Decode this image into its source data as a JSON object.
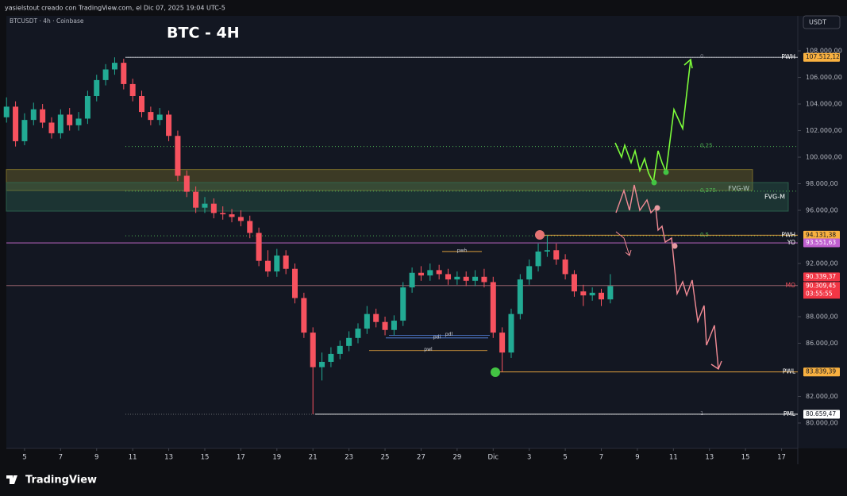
{
  "header": {
    "attribution": "yasielstout creado con TradingView.com, el Dic 07, 2025 19:04 UTC-5",
    "symbol": "BTCUSDT · 4h · Coinbase",
    "currency": "USDT",
    "brand": "TradingView"
  },
  "chart_data": {
    "type": "candlestick",
    "title": "BTC - 4H",
    "x": [
      -1,
      -0.5,
      0,
      0.5,
      1,
      1.5,
      2,
      2.5,
      3,
      3.5,
      4,
      4.5,
      5,
      5.5,
      6,
      6.5,
      7,
      7.5,
      8,
      8.5,
      9,
      9.5,
      10,
      10.5,
      11,
      11.5,
      12,
      12.5,
      13,
      13.5,
      14,
      14.5,
      15,
      15.5,
      16,
      16.5,
      17,
      17.5,
      18,
      18.5,
      19,
      19.5,
      20,
      20.5,
      21,
      21.5,
      22,
      22.5,
      23,
      23.5,
      24,
      24.5,
      25,
      25.5,
      26,
      26.5,
      27,
      27.5,
      28,
      28.5,
      29,
      29.5,
      30,
      30.5,
      31,
      31.5,
      32,
      32.5
    ],
    "open": [
      103000,
      103800,
      101200,
      102800,
      103600,
      102600,
      101800,
      103200,
      102400,
      102900,
      104600,
      105800,
      106600,
      107100,
      105500,
      104600,
      103400,
      102800,
      103200,
      101600,
      98600,
      97400,
      96200,
      96500,
      95800,
      95700,
      95500,
      95200,
      94300,
      92200,
      91400,
      92600,
      91600,
      89400,
      86800,
      84200,
      84600,
      85200,
      85800,
      86400,
      87100,
      88200,
      87600,
      87000,
      87700,
      90200,
      91300,
      91100,
      91500,
      91200,
      90800,
      91000,
      90700,
      91000,
      90600,
      86800,
      85300,
      88200,
      90800,
      91800,
      92900,
      93000,
      92300,
      91200,
      89900,
      89600,
      89800,
      89300
    ],
    "high": [
      104500,
      104200,
      103300,
      104100,
      104000,
      103000,
      103600,
      103700,
      103400,
      105000,
      106200,
      107000,
      107512,
      107400,
      105900,
      105000,
      103800,
      103700,
      103500,
      102000,
      99000,
      97800,
      97000,
      96900,
      96300,
      96100,
      96000,
      95600,
      94700,
      93000,
      93100,
      93000,
      92000,
      89800,
      87200,
      85300,
      85700,
      86200,
      86900,
      87500,
      88800,
      88600,
      88000,
      88100,
      90600,
      91700,
      91800,
      92000,
      91900,
      91600,
      91400,
      91400,
      91500,
      91600,
      91000,
      87200,
      88600,
      91200,
      92300,
      93500,
      94131,
      93500,
      92700,
      91500,
      90400,
      90200,
      90100,
      91200
    ],
    "low": [
      102600,
      100800,
      100900,
      102400,
      102200,
      101400,
      101400,
      102000,
      102000,
      102500,
      104200,
      105400,
      106200,
      105100,
      104200,
      103000,
      102400,
      102400,
      101200,
      98200,
      97000,
      95800,
      95800,
      95400,
      95300,
      95100,
      94800,
      93900,
      91800,
      91000,
      91000,
      91200,
      89000,
      86400,
      80659,
      83200,
      84200,
      84800,
      85400,
      86000,
      86700,
      87200,
      86600,
      86600,
      87300,
      89800,
      90700,
      90700,
      90800,
      90400,
      90400,
      90300,
      90300,
      90200,
      86400,
      83839,
      84900,
      87800,
      90400,
      91400,
      92500,
      91900,
      90800,
      89500,
      88800,
      89200,
      88800,
      89000
    ],
    "close": [
      103800,
      101200,
      102800,
      103600,
      102600,
      101800,
      103200,
      102400,
      102900,
      104600,
      105800,
      106600,
      107100,
      105500,
      104600,
      103400,
      102800,
      103200,
      101600,
      98600,
      97400,
      96200,
      96500,
      95800,
      95700,
      95500,
      95200,
      94300,
      92200,
      91400,
      92600,
      91600,
      89400,
      86800,
      84200,
      84600,
      85200,
      85800,
      86400,
      87100,
      88200,
      87600,
      87000,
      87700,
      90200,
      91300,
      91100,
      91500,
      91200,
      90800,
      91000,
      90700,
      91000,
      90600,
      86800,
      85300,
      88200,
      90800,
      91800,
      92900,
      93000,
      92300,
      91200,
      89900,
      89600,
      89800,
      89300,
      90300
    ],
    "up_color": "#22ab94",
    "down_color": "#f7525f",
    "xlim": [
      -1.01,
      42.9
    ],
    "xticks": [
      {
        "value": 0,
        "label": "5"
      },
      {
        "value": 2,
        "label": "7"
      },
      {
        "value": 4,
        "label": "9"
      },
      {
        "value": 6,
        "label": "11"
      },
      {
        "value": 8,
        "label": "13"
      },
      {
        "value": 10,
        "label": "15"
      },
      {
        "value": 12,
        "label": "17"
      },
      {
        "value": 14,
        "label": "19"
      },
      {
        "value": 16,
        "label": "21"
      },
      {
        "value": 18,
        "label": "23"
      },
      {
        "value": 20,
        "label": "25"
      },
      {
        "value": 22,
        "label": "27"
      },
      {
        "value": 24,
        "label": "29"
      },
      {
        "value": 26,
        "label": "Dic"
      },
      {
        "value": 28,
        "label": "3"
      },
      {
        "value": 30,
        "label": "5"
      },
      {
        "value": 32,
        "label": "7"
      },
      {
        "value": 34,
        "label": "9"
      },
      {
        "value": 36,
        "label": "11"
      },
      {
        "value": 38,
        "label": "13"
      },
      {
        "value": 40,
        "label": "15"
      },
      {
        "value": 42,
        "label": "17"
      }
    ],
    "ylim": [
      78090,
      110630
    ],
    "yticks": [
      {
        "value": 108000,
        "label": "108.000,00"
      },
      {
        "value": 106000,
        "label": "106.000,00"
      },
      {
        "value": 104000,
        "label": "104.000,00"
      },
      {
        "value": 102000,
        "label": "102.000,00"
      },
      {
        "value": 100000,
        "label": "100.000,00"
      },
      {
        "value": 98000,
        "label": "98.000,00"
      },
      {
        "value": 96000,
        "label": "96.000,00"
      },
      {
        "value": 92000,
        "label": "92.000,00"
      },
      {
        "value": 88000,
        "label": "88.000,00"
      },
      {
        "value": 86000,
        "label": "86.000,00"
      },
      {
        "value": 82000,
        "label": "82.000,00"
      },
      {
        "value": 80000,
        "label": "80.000,00"
      }
    ],
    "levels": [
      {
        "name": "PWH",
        "value": 107512.12,
        "label": "107.512,12",
        "color": "#f9b140"
      },
      {
        "name": "PWH",
        "value": 94131.38,
        "label": "94.131,38",
        "color": "#f9b140"
      },
      {
        "name": "YO",
        "value": 93551.63,
        "label": "93.551,63",
        "color": "#c060d0"
      },
      {
        "name": "MO",
        "value": 90339.37,
        "label": "90.339,37",
        "color": "#f23645"
      },
      {
        "name": "PWL",
        "value": 83839.39,
        "label": "83.839,39",
        "color": "#f9b140"
      },
      {
        "name": "PML",
        "value": 80659.47,
        "label": "80.659,47",
        "color": "#ffffff"
      }
    ],
    "last_price": {
      "value": 90309.45,
      "label": "90.309,45",
      "countdown": "03:55:55",
      "color": "#f23645"
    },
    "fib": [
      {
        "value": 107512.12,
        "label": "0"
      },
      {
        "value": 100799,
        "label": "0,25"
      },
      {
        "value": 97442,
        "label": "0,375"
      },
      {
        "value": 94086,
        "label": "0,5"
      },
      {
        "value": 80659.47,
        "label": "1"
      }
    ],
    "zones": [
      {
        "name": "FVG-W",
        "low": 97490,
        "high": 99070,
        "color": "#8a7a2a"
      },
      {
        "name": "FVG-M",
        "low": 95940,
        "high": 98090,
        "color": "#2f6b52"
      }
    ],
    "session_marks": [
      {
        "name": "pwh",
        "value": 92900
      },
      {
        "name": "pdl",
        "value": 86400
      },
      {
        "name": "pdl",
        "value": 86600
      },
      {
        "name": "pwl",
        "value": 85450
      }
    ]
  }
}
